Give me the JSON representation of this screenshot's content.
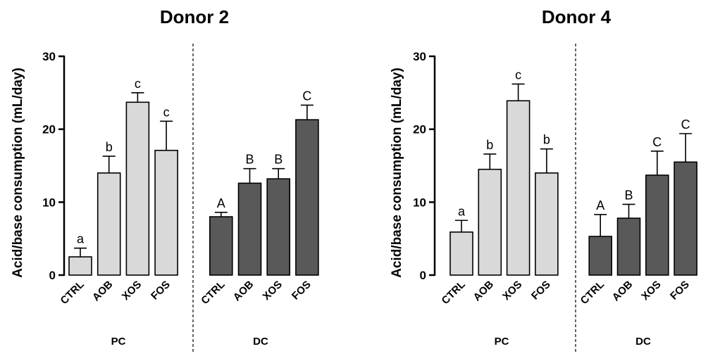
{
  "chart_data": [
    {
      "type": "bar",
      "title": "Donor 2",
      "ylabel": "Acid/base consumption (mL/day)",
      "ylim": [
        0,
        30
      ],
      "yticks": [
        0,
        10,
        20,
        30
      ],
      "categories": [
        "CTRL",
        "AOB",
        "XOS",
        "FOS",
        "CTRL",
        "AOB",
        "XOS",
        "FOS"
      ],
      "groups": [
        {
          "label": "PC",
          "color": "#d9d9d9",
          "values": [
            2.5,
            14.0,
            23.7,
            17.1
          ],
          "errors": [
            1.2,
            2.3,
            1.3,
            4.0
          ],
          "letters": [
            "a",
            "b",
            "c",
            "c"
          ]
        },
        {
          "label": "DC",
          "color": "#595959",
          "values": [
            8.0,
            12.6,
            13.2,
            21.3
          ],
          "errors": [
            0.6,
            2.0,
            1.4,
            2.0
          ],
          "letters": [
            "A",
            "B",
            "B",
            "C"
          ]
        }
      ],
      "grid": false
    },
    {
      "type": "bar",
      "title": "Donor 4",
      "ylabel": "Acid/base consumption (mL/day)",
      "ylim": [
        0,
        30
      ],
      "yticks": [
        0,
        10,
        20,
        30
      ],
      "categories": [
        "CTRL",
        "AOB",
        "XOS",
        "FOS",
        "CTRL",
        "AOB",
        "XOS",
        "FOS"
      ],
      "groups": [
        {
          "label": "PC",
          "color": "#d9d9d9",
          "values": [
            5.9,
            14.5,
            23.9,
            14.0
          ],
          "errors": [
            1.6,
            2.1,
            2.3,
            3.3
          ],
          "letters": [
            "a",
            "b",
            "c",
            "b"
          ]
        },
        {
          "label": "DC",
          "color": "#595959",
          "values": [
            5.3,
            7.8,
            13.7,
            15.5
          ],
          "errors": [
            3.0,
            1.9,
            3.3,
            3.9
          ],
          "letters": [
            "A",
            "B",
            "C",
            "C"
          ]
        }
      ],
      "grid": false
    }
  ]
}
